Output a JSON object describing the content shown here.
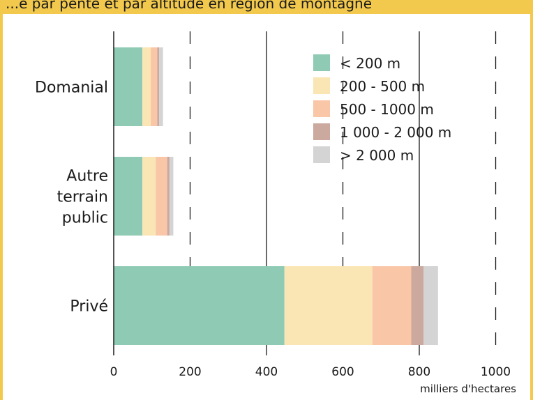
{
  "header": {
    "text": "...e par pente et par altitude en région de montagne"
  },
  "colors": {
    "header_band": "#f2c94c",
    "lt200": "#8fcab4",
    "200_500": "#fae6b4",
    "500_1000": "#f9c6a8",
    "1000_2000": "#cca99e",
    "gt2000": "#d4d4d4"
  },
  "chart_data": {
    "type": "bar",
    "orientation": "horizontal",
    "stacked": true,
    "categories": [
      "Domanial",
      "Autre terrain public",
      "Privé"
    ],
    "category_lines": [
      [
        "Domanial"
      ],
      [
        "Autre",
        "terrain",
        "public"
      ],
      [
        "Privé"
      ]
    ],
    "series": [
      {
        "name": "< 200 m",
        "color": "#8fcab4",
        "values": [
          75,
          75,
          447
        ]
      },
      {
        "name": "200 - 500 m",
        "color": "#fae6b4",
        "values": [
          22,
          35,
          230
        ]
      },
      {
        "name": "500 - 1000 m",
        "color": "#f9c6a8",
        "values": [
          17,
          30,
          102
        ]
      },
      {
        "name": "1 000 - 2 000 m",
        "color": "#cca99e",
        "values": [
          5,
          6,
          32
        ]
      },
      {
        "name": "> 2 000 m",
        "color": "#d4d4d4",
        "values": [
          10,
          10,
          38
        ]
      }
    ],
    "xticks": [
      "0",
      "200",
      "400",
      "600",
      "800",
      "1000"
    ],
    "xtick_values": [
      0,
      200,
      400,
      600,
      800,
      1000
    ],
    "xlim": [
      0,
      1000
    ],
    "xlabel": "milliers d'hectares",
    "ylabel": "",
    "gridlines": {
      "solid": [
        400,
        800
      ],
      "dashed": [
        200,
        600,
        1000
      ]
    },
    "legend_position": "top-right"
  }
}
